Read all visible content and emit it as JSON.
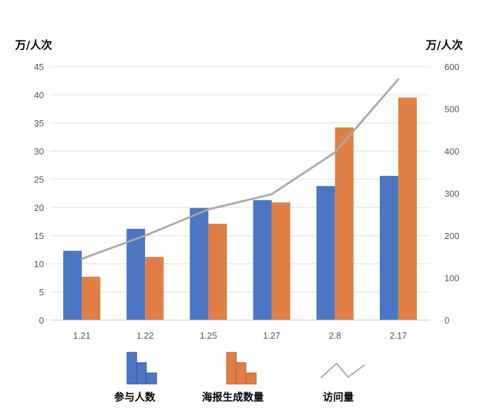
{
  "chart_data": {
    "type": "bar",
    "categories": [
      "1.21",
      "1.22",
      "1.25",
      "1.27",
      "2.8",
      "2.17"
    ],
    "series": [
      {
        "name": "参与人数",
        "type": "bar",
        "axis": "left",
        "color": "#4a76c2",
        "values": [
          12.3,
          16.2,
          19.9,
          21.3,
          23.8,
          25.6
        ]
      },
      {
        "name": "海报生成数量",
        "type": "bar",
        "axis": "left",
        "color": "#e07f45",
        "values": [
          7.7,
          11.2,
          17.1,
          20.9,
          34.2,
          39.5
        ]
      },
      {
        "name": "访问量",
        "type": "line",
        "axis": "right",
        "color": "#a9a9a9",
        "values": [
          145,
          200,
          262,
          298,
          397,
          570
        ]
      }
    ],
    "y_left": {
      "label": "万/人次",
      "range": [
        0,
        45
      ],
      "ticks": [
        "0",
        "5",
        "10",
        "15",
        "20",
        "25",
        "30",
        "35",
        "40",
        "45"
      ]
    },
    "y_right": {
      "label": "万/人次",
      "range": [
        0,
        600
      ],
      "ticks": [
        "0",
        "100",
        "200",
        "300",
        "400",
        "500",
        "600"
      ]
    },
    "grid": true,
    "legend_position": "bottom"
  }
}
